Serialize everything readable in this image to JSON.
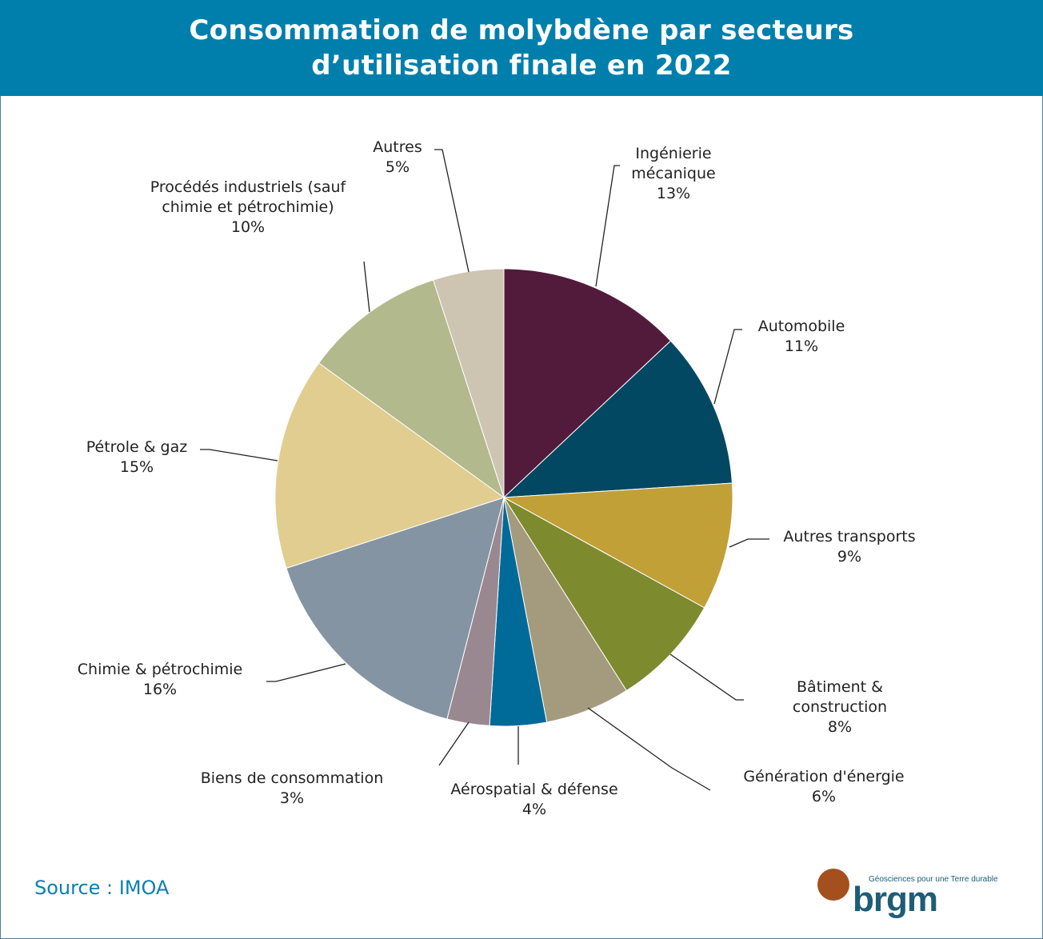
{
  "chart_data": {
    "type": "pie",
    "title": "Consommation de molybdène par secteurs d’utilisation finale en 2022",
    "start": "top, clockwise",
    "slices": [
      {
        "label": "Ingénierie mécanique",
        "value": 13,
        "pct": "13%",
        "color": "#521b3c"
      },
      {
        "label": "Automobile",
        "value": 11,
        "pct": "11%",
        "color": "#024862"
      },
      {
        "label": "Autres transports",
        "value": 9,
        "pct": "9%",
        "color": "#c1a038"
      },
      {
        "label": "Bâtiment & construction",
        "value": 8,
        "pct": "8%",
        "color": "#7e8a2e"
      },
      {
        "label": "Génération d'énergie",
        "value": 6,
        "pct": "6%",
        "color": "#a49a7e"
      },
      {
        "label": "Aérospatial & défense",
        "value": 4,
        "pct": "4%",
        "color": "#006b98"
      },
      {
        "label": "Biens de consommation",
        "value": 3,
        "pct": "3%",
        "color": "#9a8890"
      },
      {
        "label": "Chimie & pétrochimie",
        "value": 16,
        "pct": "16%",
        "color": "#8494a2"
      },
      {
        "label": "Pétrole & gaz",
        "value": 15,
        "pct": "15%",
        "color": "#e2cd90"
      },
      {
        "label": "Procédés industriels (sauf chimie et pétrochimie)",
        "value": 10,
        "pct": "10%",
        "color": "#b2b98c"
      },
      {
        "label": "Autres",
        "value": 5,
        "pct": "5%",
        "color": "#cdc5b2"
      }
    ]
  },
  "header": {
    "title": "Consommation de molybdène par secteurs d’utilisation finale en 2022",
    "background": "#007fad"
  },
  "footer": {
    "source": "Source : IMOA",
    "logo_text": "brgm",
    "logo_tagline": "Géosciences pour une Terre durable"
  }
}
